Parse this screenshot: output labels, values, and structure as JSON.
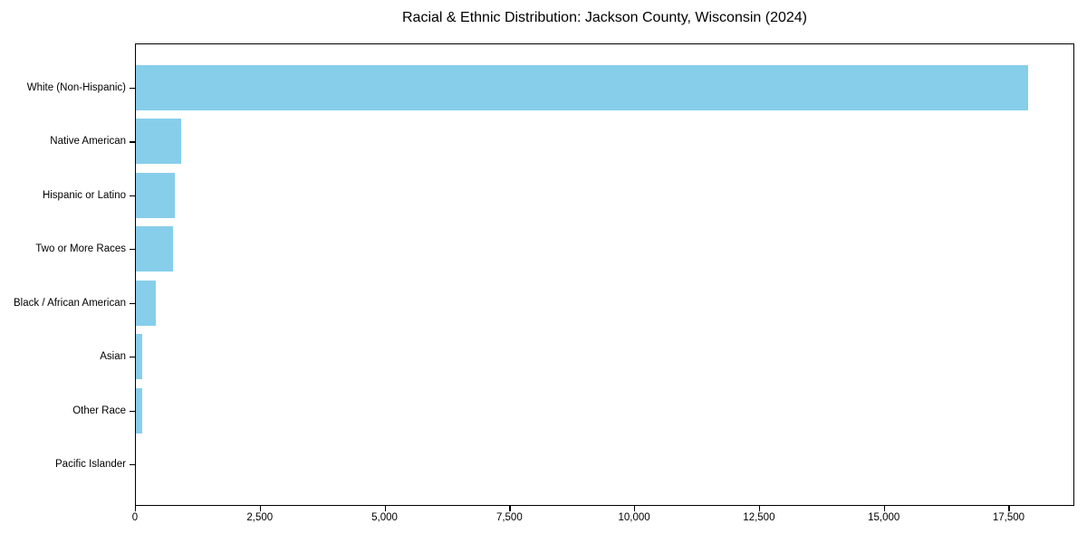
{
  "chart_data": {
    "type": "bar",
    "orientation": "horizontal",
    "title": "Racial & Ethnic Distribution: Jackson County, Wisconsin (2024)",
    "xlabel": "",
    "ylabel": "",
    "categories": [
      "White (Non-Hispanic)",
      "Native American",
      "Hispanic or Latino",
      "Two or More Races",
      "Black / African American",
      "Asian",
      "Other Race",
      "Pacific Islander"
    ],
    "values": [
      17880,
      900,
      775,
      740,
      395,
      120,
      135,
      0
    ],
    "xlim": [
      0,
      18780
    ],
    "xticks": [
      0,
      2500,
      5000,
      7500,
      10000,
      12500,
      15000,
      17500
    ],
    "xtick_labels": [
      "0",
      "2,500",
      "5,000",
      "7,500",
      "10,000",
      "12,500",
      "15,000",
      "17,500"
    ],
    "bar_color": "#87CEEB",
    "text_color": "#000000",
    "grid": false,
    "legend_position": "none"
  }
}
